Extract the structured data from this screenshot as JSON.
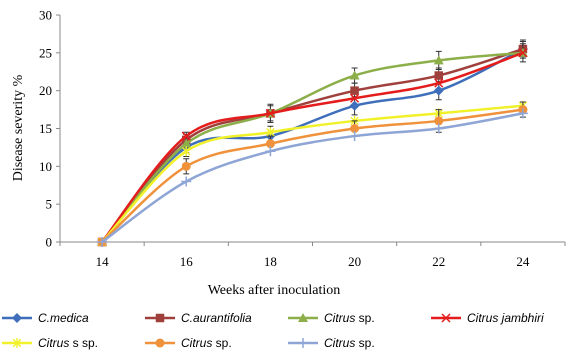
{
  "chart_data": {
    "type": "line",
    "xlabel": "Weeks after inoculation",
    "ylabel": "Disease severity %",
    "x": [
      14,
      16,
      18,
      20,
      22,
      24
    ],
    "ylim": [
      0,
      30
    ],
    "yticks": [
      0,
      5,
      10,
      15,
      20,
      25,
      30
    ],
    "grid": false,
    "legend_position": "bottom",
    "series": [
      {
        "name": "C.medica",
        "italic": "C.medica",
        "plain": "",
        "color": "#3f6fba",
        "marker": "diamond",
        "values": [
          0,
          12.5,
          14,
          18,
          20,
          25.5
        ],
        "err": [
          0,
          1.2,
          1.3,
          1.2,
          1.2,
          1.2
        ]
      },
      {
        "name": "C.aurantifolia",
        "italic": "C.aurantifolia",
        "plain": "",
        "color": "#a0403c",
        "marker": "square",
        "values": [
          0,
          13.5,
          17,
          20,
          22,
          25.5
        ],
        "err": [
          0,
          1.0,
          1.0,
          1.0,
          1.0,
          1.0
        ]
      },
      {
        "name": "Citrus sp.",
        "italic": "Citrus",
        "plain": " sp.",
        "color": "#8caf4a",
        "marker": "triangle",
        "values": [
          0,
          13,
          17,
          22,
          24,
          25
        ],
        "err": [
          0,
          1.2,
          1.2,
          1.0,
          1.2,
          1.2
        ]
      },
      {
        "name": "Citrus jambhiri",
        "italic": "Citrus jambhiri",
        "plain": "",
        "color": "#e41c1c",
        "marker": "x",
        "values": [
          0,
          14,
          17,
          19,
          21,
          25
        ],
        "err": [
          0,
          0,
          0,
          0,
          0,
          0
        ]
      },
      {
        "name": "Citrus s sp.",
        "italic": "Citrus",
        "plain": " s sp.",
        "color": "#f1f12a",
        "marker": "asterisk",
        "values": [
          0,
          12,
          14.5,
          16,
          17,
          18
        ],
        "err": [
          0,
          0,
          0,
          0,
          0,
          0
        ]
      },
      {
        "name": "Citrus sp.",
        "italic": "Citrus",
        "plain": " sp.",
        "color": "#f0923c",
        "marker": "circle",
        "values": [
          0,
          10,
          13,
          15,
          16,
          17.5
        ],
        "err": [
          0,
          1.0,
          1.0,
          1.0,
          1.5,
          1.0
        ]
      },
      {
        "name": "Citrus sp.",
        "italic": "Citrus",
        "plain": " sp.",
        "color": "#8ea5d6",
        "marker": "plus",
        "values": [
          0,
          8,
          12,
          14,
          15,
          17
        ],
        "err": [
          0,
          0,
          0,
          0,
          0,
          0
        ]
      }
    ]
  }
}
